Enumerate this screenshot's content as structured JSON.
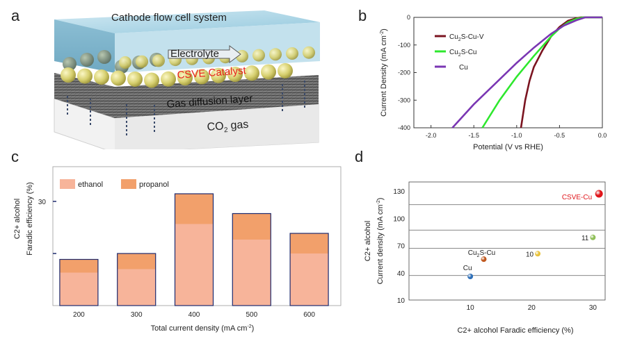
{
  "panels": {
    "a": {
      "letter": "a",
      "title": "Cathode flow cell system",
      "electrolyte": "Electrolyte",
      "catalyst": "CSVE Catalyst",
      "gdl": "Gas diffusion layer",
      "gas_co": "CO",
      "gas_sub": "2",
      "gas_word": " gas",
      "colors": {
        "catalyst_text": "#e8221b",
        "electrolyte_top": "#a9d4e6",
        "sphere": "#d8d27a"
      }
    },
    "b": {
      "letter": "b"
    },
    "c": {
      "letter": "c"
    },
    "d": {
      "letter": "d"
    }
  },
  "chart_data": [
    {
      "panel": "b",
      "type": "line",
      "xlabel": "Potential (V vs RHE)",
      "ylabel_main": "Current Density (mA cm",
      "ylabel_sup": "-2",
      "ylabel_end": ")",
      "xlim": [
        -2.2,
        0.0
      ],
      "ylim": [
        -400,
        0
      ],
      "xticks": [
        "-2.0",
        "-1.5",
        "-1.0",
        "-0.5",
        "0.0"
      ],
      "xtick_values": [
        -2.0,
        -1.5,
        -1.0,
        -0.5,
        0.0
      ],
      "yticks": [
        "0",
        "-100",
        "-200",
        "-300",
        "-400"
      ],
      "ytick_values": [
        0,
        -100,
        -200,
        -300,
        -400
      ],
      "legend_position": "top-left",
      "series": [
        {
          "name_main": "Cu",
          "name_sub": "2",
          "name_end": "S-Cu-V",
          "color": "#7b1420",
          "x": [
            -0.95,
            -0.9,
            -0.85,
            -0.8,
            -0.7,
            -0.6,
            -0.5,
            -0.4,
            -0.3,
            -0.25,
            0.0
          ],
          "y": [
            -400,
            -300,
            -230,
            -180,
            -120,
            -70,
            -35,
            -12,
            -3,
            0,
            0
          ]
        },
        {
          "name_main": "Cu",
          "name_sub": "2",
          "name_end": "S-Cu",
          "color": "#2ee82e",
          "x": [
            -1.4,
            -1.2,
            -1.0,
            -0.8,
            -0.6,
            -0.5,
            -0.4,
            -0.3,
            -0.22,
            0.0
          ],
          "y": [
            -400,
            -300,
            -215,
            -140,
            -70,
            -40,
            -18,
            -5,
            0,
            0
          ]
        },
        {
          "name_main": "Cu",
          "name_sub": "",
          "name_end": "",
          "color": "#7a36b3",
          "x": [
            -1.75,
            -1.5,
            -1.25,
            -1.0,
            -0.8,
            -0.6,
            -0.45,
            -0.3,
            -0.2,
            0.0
          ],
          "y": [
            -400,
            -315,
            -240,
            -165,
            -110,
            -60,
            -30,
            -10,
            0,
            0
          ]
        }
      ]
    },
    {
      "panel": "c",
      "type": "bar",
      "xlabel_main": "Total current density (mA cm",
      "xlabel_sup": "-2",
      "xlabel_end": ")",
      "ylabel_line1": "C2+ alcohol",
      "ylabel_line2": "Faradic efficiency (%)",
      "ylim": [
        0,
        40
      ],
      "ytick_label": "30",
      "ytick_value": 30,
      "ytick_unlabeled_value": 15,
      "categories": [
        "200",
        "300",
        "400",
        "500",
        "600"
      ],
      "legend_position": "top-left",
      "series": [
        {
          "name": "ethanol",
          "color": "#f7b49a",
          "values": [
            9.5,
            10.5,
            23.5,
            19,
            15
          ]
        },
        {
          "name": "propanol",
          "color": "#f2a06b",
          "values": [
            3.8,
            4.5,
            8.7,
            7.5,
            5.8
          ]
        }
      ],
      "bar_border": "#1d2a6e"
    },
    {
      "panel": "d",
      "type": "scatter",
      "xlabel": "C2+ alcohol  Faradic efficiency (%)",
      "ylabel_line1": "C2+ alcohol",
      "ylabel_line2_main": "Current density (mA cm",
      "ylabel_line2_sup": "-2",
      "ylabel_line2_end": ")",
      "xlim": [
        0,
        32
      ],
      "ylim": [
        10,
        140
      ],
      "xticks": [
        "10",
        "20",
        "30"
      ],
      "xtick_values": [
        10,
        20,
        30
      ],
      "yticks": [
        "10",
        "40",
        "70",
        "100",
        "130"
      ],
      "ytick_values": [
        10,
        40,
        70,
        100,
        130
      ],
      "hlines": [
        37,
        67,
        87,
        115
      ],
      "points": [
        {
          "label_main": "Cu",
          "label_sub": "",
          "label_end": "",
          "x": 10,
          "y": 36,
          "color": "#2e6fb8",
          "r": 4,
          "label_color": "#222"
        },
        {
          "label_main": "Cu",
          "label_sub": "2",
          "label_end": "S-Cu",
          "x": 12.2,
          "y": 55,
          "color": "#c0581e",
          "r": 4,
          "label_color": "#222"
        },
        {
          "label_main": "10",
          "label_sub": "",
          "label_end": "",
          "x": 21,
          "y": 61,
          "color": "#e8c23c",
          "r": 4,
          "label_color": "#222"
        },
        {
          "label_main": "11",
          "label_sub": "",
          "label_end": "",
          "x": 30,
          "y": 79,
          "color": "#8fbf58",
          "r": 4,
          "label_color": "#222"
        },
        {
          "label_main": "CSVE-Cu",
          "label_sub": "",
          "label_end": "",
          "x": 31,
          "y": 127,
          "color": "#e0151a",
          "r": 5.5,
          "label_color": "#e0151a"
        }
      ]
    }
  ]
}
